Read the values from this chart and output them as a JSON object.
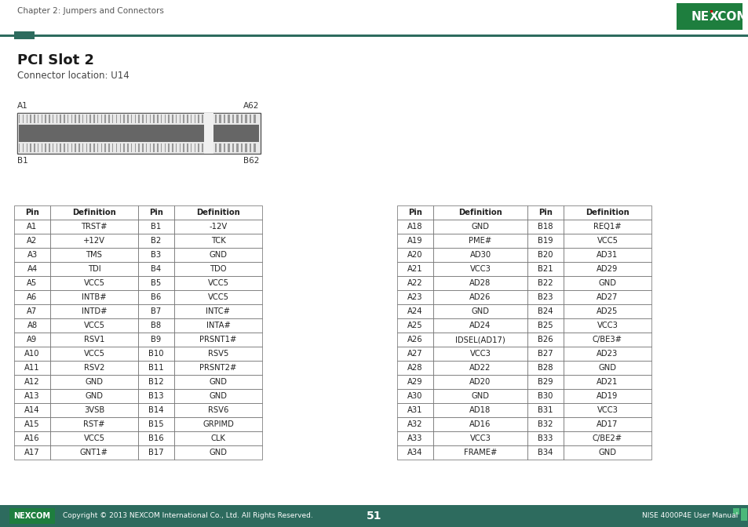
{
  "page_header": "Chapter 2: Jumpers and Connectors",
  "title": "PCI Slot 2",
  "subtitle": "Connector location: U14",
  "bg_color": "#ffffff",
  "header_line_color": "#2d6b5e",
  "header_square_color": "#2d6b5e",
  "footer_bar_color": "#2d6b5e",
  "footer_text": "Copyright © 2013 NEXCOM International Co., Ltd. All Rights Reserved.",
  "page_number": "51",
  "footer_right": "NISE 4000P4E User Manual",
  "left_table": {
    "col_headers": [
      "Pin",
      "Definition",
      "Pin",
      "Definition"
    ],
    "rows": [
      [
        "A1",
        "TRST#",
        "B1",
        "-12V"
      ],
      [
        "A2",
        "+12V",
        "B2",
        "TCK"
      ],
      [
        "A3",
        "TMS",
        "B3",
        "GND"
      ],
      [
        "A4",
        "TDI",
        "B4",
        "TDO"
      ],
      [
        "A5",
        "VCC5",
        "B5",
        "VCC5"
      ],
      [
        "A6",
        "INTB#",
        "B6",
        "VCC5"
      ],
      [
        "A7",
        "INTD#",
        "B7",
        "INTC#"
      ],
      [
        "A8",
        "VCC5",
        "B8",
        "INTA#"
      ],
      [
        "A9",
        "RSV1",
        "B9",
        "PRSNT1#"
      ],
      [
        "A10",
        "VCC5",
        "B10",
        "RSV5"
      ],
      [
        "A11",
        "RSV2",
        "B11",
        "PRSNT2#"
      ],
      [
        "A12",
        "GND",
        "B12",
        "GND"
      ],
      [
        "A13",
        "GND",
        "B13",
        "GND"
      ],
      [
        "A14",
        "3VSB",
        "B14",
        "RSV6"
      ],
      [
        "A15",
        "RST#",
        "B15",
        "GRPIMD"
      ],
      [
        "A16",
        "VCC5",
        "B16",
        "CLK"
      ],
      [
        "A17",
        "GNT1#",
        "B17",
        "GND"
      ]
    ]
  },
  "right_table": {
    "col_headers": [
      "Pin",
      "Definition",
      "Pin",
      "Definition"
    ],
    "rows": [
      [
        "A18",
        "GND",
        "B18",
        "REQ1#"
      ],
      [
        "A19",
        "PME#",
        "B19",
        "VCC5"
      ],
      [
        "A20",
        "AD30",
        "B20",
        "AD31"
      ],
      [
        "A21",
        "VCC3",
        "B21",
        "AD29"
      ],
      [
        "A22",
        "AD28",
        "B22",
        "GND"
      ],
      [
        "A23",
        "AD26",
        "B23",
        "AD27"
      ],
      [
        "A24",
        "GND",
        "B24",
        "AD25"
      ],
      [
        "A25",
        "AD24",
        "B25",
        "VCC3"
      ],
      [
        "A26",
        "IDSEL(AD17)",
        "B26",
        "C/BE3#"
      ],
      [
        "A27",
        "VCC3",
        "B27",
        "AD23"
      ],
      [
        "A28",
        "AD22",
        "B28",
        "GND"
      ],
      [
        "A29",
        "AD20",
        "B29",
        "AD21"
      ],
      [
        "A30",
        "GND",
        "B30",
        "AD19"
      ],
      [
        "A31",
        "AD18",
        "B31",
        "VCC3"
      ],
      [
        "A32",
        "AD16",
        "B32",
        "AD17"
      ],
      [
        "A33",
        "VCC3",
        "B33",
        "C/BE2#"
      ],
      [
        "A34",
        "FRAME#",
        "B34",
        "GND"
      ]
    ]
  }
}
